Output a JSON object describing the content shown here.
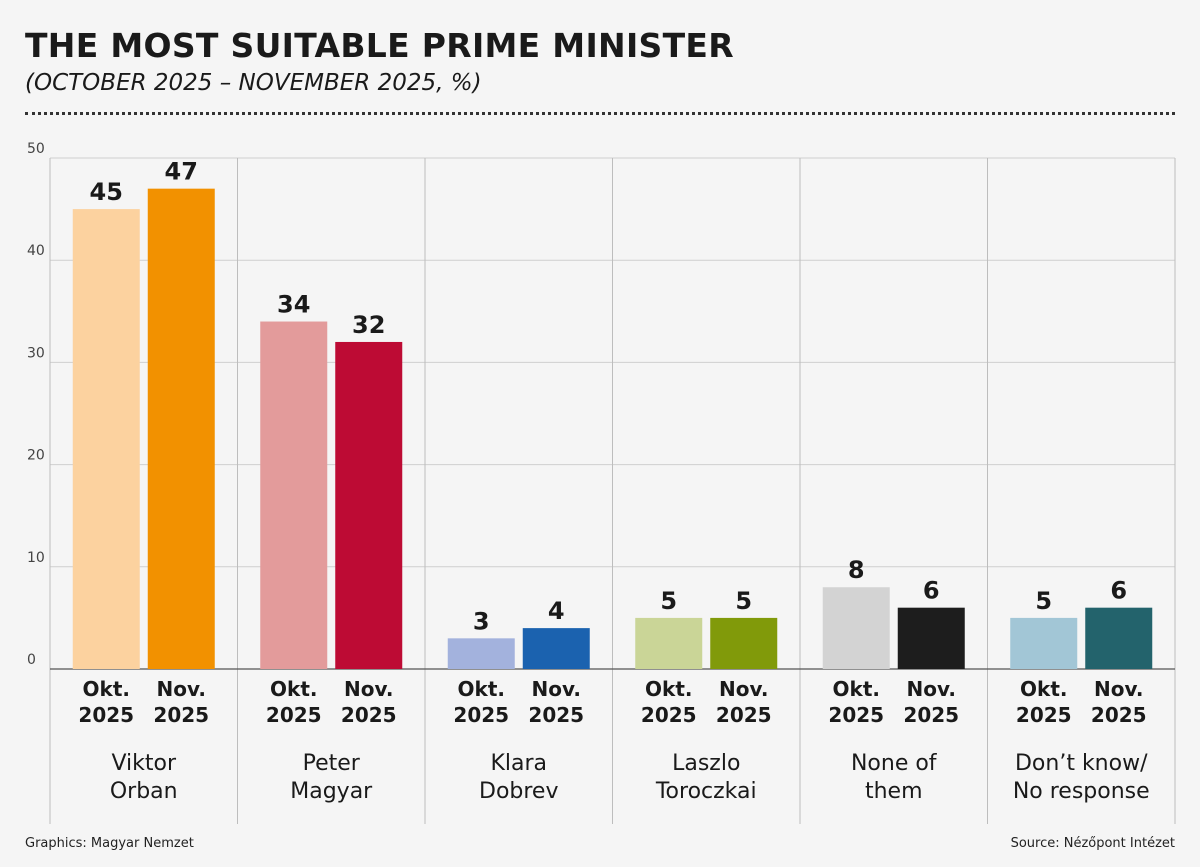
{
  "chart_data": {
    "type": "bar",
    "title": "THE MOST SUITABLE PRIME MINISTER",
    "subtitle": "(OCTOBER 2025 – NOVEMBER 2025, %)",
    "xlabel": "",
    "ylabel": "",
    "ylim": [
      0,
      50
    ],
    "yticks": [
      "0",
      "10",
      "20",
      "30",
      "40",
      "50"
    ],
    "series_labels": [
      [
        "Okt.",
        "2025"
      ],
      [
        "Nov.",
        "2025"
      ]
    ],
    "categories": [
      {
        "name": [
          "Viktor",
          "Orban"
        ],
        "values": [
          45,
          47
        ],
        "colors": [
          "#fcd29f",
          "#f29100"
        ]
      },
      {
        "name": [
          "Peter",
          "Magyar"
        ],
        "values": [
          34,
          32
        ],
        "colors": [
          "#e39b9b",
          "#bd0b34"
        ]
      },
      {
        "name": [
          "Klara",
          "Dobrev"
        ],
        "values": [
          3,
          4
        ],
        "colors": [
          "#a3b2dd",
          "#1b62af"
        ]
      },
      {
        "name": [
          "Laszlo",
          "Toroczkai"
        ],
        "values": [
          5,
          5
        ],
        "colors": [
          "#cad597",
          "#819a0a"
        ]
      },
      {
        "name": [
          "None of",
          "them"
        ],
        "values": [
          8,
          6
        ],
        "colors": [
          "#d3d3d3",
          "#1d1d1d"
        ]
      },
      {
        "name": [
          "Don’t know/",
          "No response"
        ],
        "values": [
          5,
          6
        ],
        "colors": [
          "#a2c6d6",
          "#23636c"
        ]
      }
    ]
  },
  "footer": {
    "left": "Graphics: Magyar Nemzet",
    "right": "Source: Nézőpont Intézet"
  }
}
